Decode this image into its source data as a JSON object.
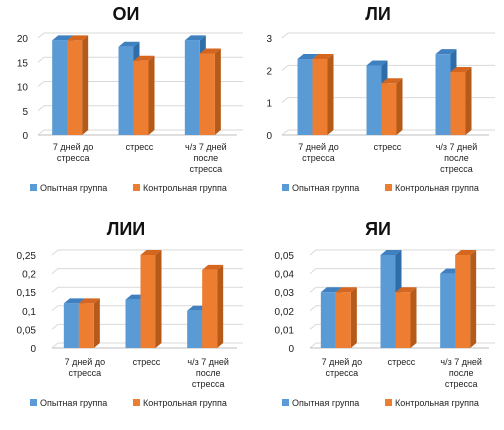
{
  "colors": {
    "series1_front": "#5b9bd5",
    "series1_side": "#2e6da8",
    "series1_top": "#3e80c0",
    "series2_front": "#ed7d31",
    "series2_side": "#b55a18",
    "series2_top": "#d56620",
    "grid": "#d9d9d9",
    "floor": "#bfbfbf"
  },
  "chart_data": [
    {
      "type": "bar",
      "title": "ОИ",
      "categories": [
        [
          "7 дней до",
          "стресса"
        ],
        [
          "стресс"
        ],
        [
          "ч/з 7 дней",
          "после",
          "стресса"
        ]
      ],
      "yticks": [
        "0",
        "5",
        "10",
        "15",
        "20"
      ],
      "ylim": [
        0,
        20
      ],
      "grid": true,
      "legend": "bottom",
      "series": [
        {
          "name": "Опытная группа",
          "values": [
            19.5,
            18.2,
            19.5
          ]
        },
        {
          "name": "Контрольная группа",
          "values": [
            19.5,
            15.3,
            16.8
          ]
        }
      ]
    },
    {
      "type": "bar",
      "title": "ЛИ",
      "categories": [
        [
          "7 дней до",
          "стресса"
        ],
        [
          "стресс"
        ],
        [
          "ч/з 7 дней",
          "после",
          "стресса"
        ]
      ],
      "yticks": [
        "0",
        "1",
        "2",
        "3"
      ],
      "ylim": [
        0,
        3
      ],
      "grid": true,
      "legend": "bottom",
      "series": [
        {
          "name": "Опытная группа",
          "values": [
            2.35,
            2.15,
            2.5
          ]
        },
        {
          "name": "Контрольная группа",
          "values": [
            2.35,
            1.6,
            1.95
          ]
        }
      ]
    },
    {
      "type": "bar",
      "title": "ЛИИ",
      "categories": [
        [
          "7 дней до",
          "стресса"
        ],
        [
          "стресс"
        ],
        [
          "ч/з 7 дней",
          "после",
          "стресса"
        ]
      ],
      "yticks": [
        "0",
        "0,05",
        "0,1",
        "0,15",
        "0,2",
        "0,25"
      ],
      "ylim": [
        0,
        0.25
      ],
      "grid": true,
      "legend": "bottom",
      "series": [
        {
          "name": "Опытная группа",
          "values": [
            0.12,
            0.13,
            0.1
          ]
        },
        {
          "name": "Контрольная группа",
          "values": [
            0.12,
            0.25,
            0.21
          ]
        }
      ]
    },
    {
      "type": "bar",
      "title": "ЯИ",
      "categories": [
        [
          "7 дней до",
          "стресса"
        ],
        [
          "стресс"
        ],
        [
          "ч/з 7 дней",
          "после",
          "стресса"
        ]
      ],
      "yticks": [
        "0",
        "0,01",
        "0,02",
        "0,03",
        "0,04",
        "0,05"
      ],
      "ylim": [
        0,
        0.05
      ],
      "grid": true,
      "legend": "bottom",
      "series": [
        {
          "name": "Опытная группа",
          "values": [
            0.03,
            0.05,
            0.04
          ]
        },
        {
          "name": "Контрольная группа",
          "values": [
            0.03,
            0.03,
            0.05
          ]
        }
      ]
    }
  ]
}
